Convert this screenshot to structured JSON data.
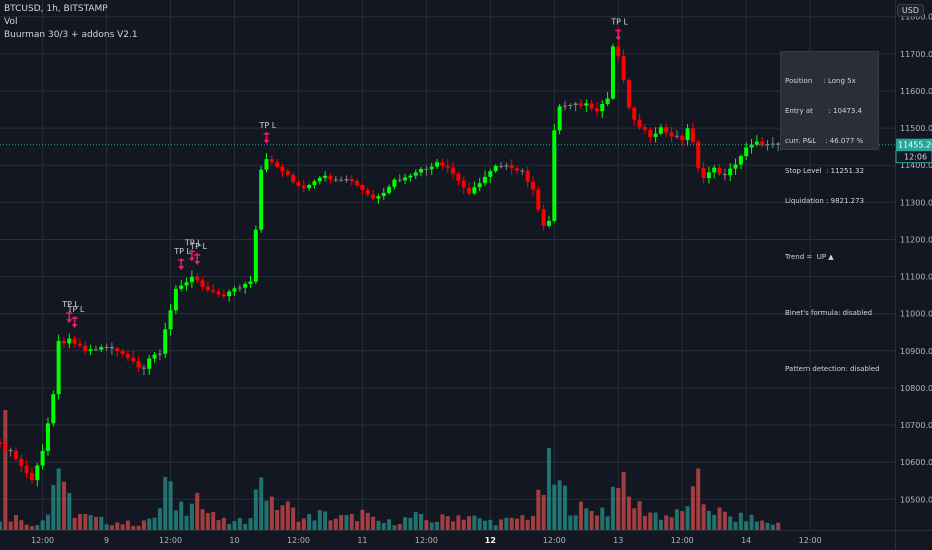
{
  "header": {
    "symbol": "BTCUSD, 1h, BITSTAMP",
    "volume_label": "Vol",
    "study_label": "Buurman 30/3 + addons V2.1",
    "currency": "USD"
  },
  "info_panel": {
    "position": "Position     : Long 5x",
    "entry": "Entry at       : 10473.4",
    "pnl": "curr. P&L    : 46.077 %",
    "stop": "Stop Level  : 11251.32",
    "liquidation": "Liquidation : 9821.273",
    "trend": "Trend =  UP ▲",
    "binet": "Binet's formula: disabled",
    "pattern": "Pattern detection: disabled"
  },
  "price_badges": {
    "last_price": "11455.20",
    "countdown": "12:06"
  },
  "signal_label": "TP L",
  "colors": {
    "background": "#131722",
    "grid": "#2a2e39",
    "up": "#00ff00",
    "down": "#ff0000",
    "neutral": "#808080",
    "volume_up": "#26a69a",
    "volume_down": "#ef5350",
    "signal": "#e91e63",
    "axis_text": "#b2b5be",
    "last_price_badge": "#26a69a",
    "countdown_badge": "#131722"
  },
  "chart_data": {
    "type": "candlestick",
    "y_axis": {
      "side": "right",
      "ticks": [
        10500,
        10600,
        10700,
        10800,
        10900,
        11000,
        11100,
        11200,
        11300,
        11400,
        11500,
        11600,
        11700,
        11800
      ],
      "tick_labels": [
        "10500.00",
        "10600.00",
        "10700.00",
        "10800.00",
        "10900.00",
        "11000.00",
        "11100.00",
        "11200.00",
        "11300.00",
        "11400.00",
        "11500.00",
        "11600.00",
        "11700.00",
        "11800.00"
      ],
      "range": [
        10420,
        11845
      ]
    },
    "x_axis": {
      "tick_labels": [
        "12:00",
        "9",
        "12:00",
        "10",
        "12:00",
        "11",
        "12:00",
        "12",
        "12:00",
        "13",
        "12:00",
        "14",
        "12:00"
      ],
      "tick_bars": [
        8,
        20,
        32,
        44,
        56,
        68,
        80,
        92,
        104,
        116,
        128,
        140,
        152
      ],
      "bold": [
        "12"
      ]
    },
    "bars_visible": 147,
    "last_price": 11455.2,
    "signals": [
      {
        "bar": 13,
        "label": "TP L"
      },
      {
        "bar": 14,
        "label": "TP L"
      },
      {
        "bar": 34,
        "label": "TP L"
      },
      {
        "bar": 36,
        "label": "TP L"
      },
      {
        "bar": 37,
        "label": "TP L"
      },
      {
        "bar": 50,
        "label": "TP L"
      },
      {
        "bar": 116,
        "label": "TP L"
      }
    ],
    "anchors": [
      [
        0,
        10645,
        10.06
      ],
      [
        2,
        10630,
        0.12
      ],
      [
        5,
        10570,
        0.07
      ],
      [
        6,
        10555,
        0.04
      ],
      [
        8,
        10630,
        0.09
      ],
      [
        9,
        10700,
        0.13
      ],
      [
        10,
        10780,
        0.43
      ],
      [
        11,
        10930,
        0.54
      ],
      [
        12,
        10915,
        0.29
      ],
      [
        13,
        10930,
        0.24
      ],
      [
        14,
        10920,
        0.15
      ],
      [
        16,
        10900,
        0.11
      ],
      [
        20,
        10910,
        0.07
      ],
      [
        23,
        10895,
        0.06
      ],
      [
        26,
        10860,
        0.05
      ],
      [
        27,
        10855,
        0.08
      ],
      [
        28,
        10880,
        0.07
      ],
      [
        30,
        10890,
        0.17
      ],
      [
        31,
        10960,
        0.37
      ],
      [
        32,
        11010,
        0.29
      ],
      [
        33,
        11070,
        0.22
      ],
      [
        35,
        11080,
        0.2
      ],
      [
        36,
        11095,
        0.38
      ],
      [
        37,
        11090,
        0.31
      ],
      [
        38,
        11070,
        0.18
      ],
      [
        40,
        11055,
        0.11
      ],
      [
        42,
        11050,
        0.07
      ],
      [
        44,
        11065,
        0.06
      ],
      [
        46,
        11080,
        0.08
      ],
      [
        47,
        11090,
        0.18
      ],
      [
        48,
        11230,
        0.28
      ],
      [
        49,
        11390,
        0.53
      ],
      [
        50,
        11420,
        0.33
      ],
      [
        51,
        11405,
        0.2
      ],
      [
        53,
        11385,
        0.22
      ],
      [
        55,
        11355,
        0.15
      ],
      [
        57,
        11340,
        0.09
      ],
      [
        60,
        11370,
        0.13
      ],
      [
        63,
        11365,
        0.1
      ],
      [
        66,
        11360,
        0.1
      ],
      [
        68,
        11335,
        0.14
      ],
      [
        70,
        11310,
        0.08
      ],
      [
        72,
        11330,
        0.06
      ],
      [
        74,
        11360,
        0.07
      ],
      [
        76,
        11365,
        0.09
      ],
      [
        78,
        11385,
        0.11
      ],
      [
        80,
        11390,
        0.08
      ],
      [
        82,
        11410,
        0.08
      ],
      [
        84,
        11395,
        0.11
      ],
      [
        86,
        11360,
        0.12
      ],
      [
        88,
        11320,
        0.12
      ],
      [
        90,
        11355,
        0.08
      ],
      [
        93,
        11395,
        0.07
      ],
      [
        96,
        11395,
        0.08
      ],
      [
        98,
        11385,
        0.11
      ],
      [
        100,
        11330,
        0.13
      ],
      [
        102,
        11240,
        0.34
      ],
      [
        103,
        11250,
        0.48
      ],
      [
        104,
        11490,
        0.39
      ],
      [
        105,
        11560,
        0.35
      ],
      [
        107,
        11560,
        0.22
      ],
      [
        110,
        11565,
        0.15
      ],
      [
        112,
        11550,
        0.18
      ],
      [
        114,
        11580,
        0.16
      ],
      [
        115,
        11720,
        0.34
      ],
      [
        116,
        11690,
        0.55
      ],
      [
        117,
        11630,
        0.34
      ],
      [
        118,
        11550,
        0.25
      ],
      [
        120,
        11500,
        0.19
      ],
      [
        122,
        11480,
        0.15
      ],
      [
        124,
        11500,
        0.12
      ],
      [
        126,
        11480,
        0.12
      ],
      [
        128,
        11470,
        0.14
      ],
      [
        129,
        11500,
        0.25
      ],
      [
        130,
        11460,
        0.27
      ],
      [
        131,
        11390,
        0.36
      ],
      [
        132,
        11370,
        0.23
      ],
      [
        134,
        11390,
        0.17
      ],
      [
        136,
        11370,
        0.12
      ],
      [
        138,
        11405,
        0.09
      ],
      [
        140,
        11445,
        0.11
      ],
      [
        142,
        11460,
        0.08
      ],
      [
        144,
        11455,
        0.06
      ],
      [
        146,
        11455,
        0.05
      ]
    ]
  }
}
